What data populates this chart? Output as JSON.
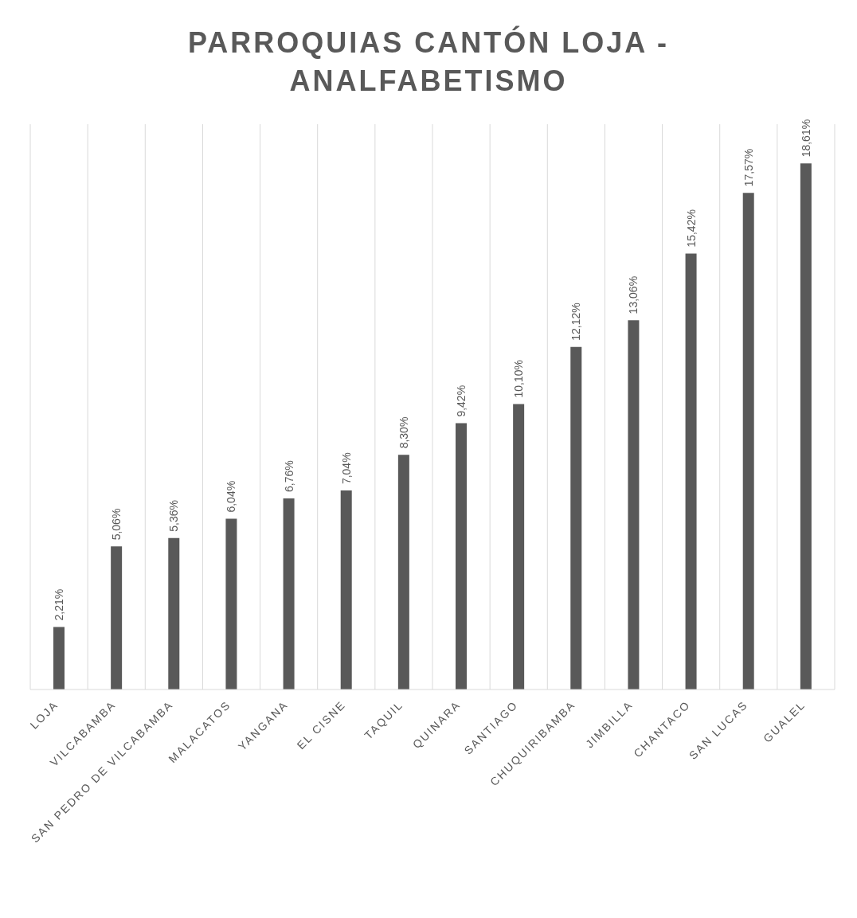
{
  "chart_data": {
    "type": "bar",
    "title": "PARROQUIAS CANTÓN LOJA - ANALFABETISMO",
    "categories": [
      "LOJA",
      "VILCABAMBA",
      "SAN PEDRO DE VILCABAMBA",
      "MALACATOS",
      "YANGANA",
      "EL CISNE",
      "TAQUIL",
      "QUINARA",
      "SANTIAGO",
      "CHUQUIRIBAMBA",
      "JIMBILLA",
      "CHANTACO",
      "SAN LUCAS",
      "GUALEL"
    ],
    "values": [
      2.21,
      5.06,
      5.36,
      6.04,
      6.76,
      7.04,
      8.3,
      9.42,
      10.1,
      12.12,
      13.06,
      15.42,
      17.57,
      18.61
    ],
    "value_labels": [
      "2,21%",
      "5,06%",
      "5,36%",
      "6,04%",
      "6,76%",
      "7,04%",
      "8,30%",
      "9,42%",
      "10,10%",
      "12,12%",
      "13,06%",
      "15,42%",
      "17,57%",
      "18,61%"
    ],
    "color": "#595959",
    "grid": "x",
    "tick_labels": "x"
  }
}
